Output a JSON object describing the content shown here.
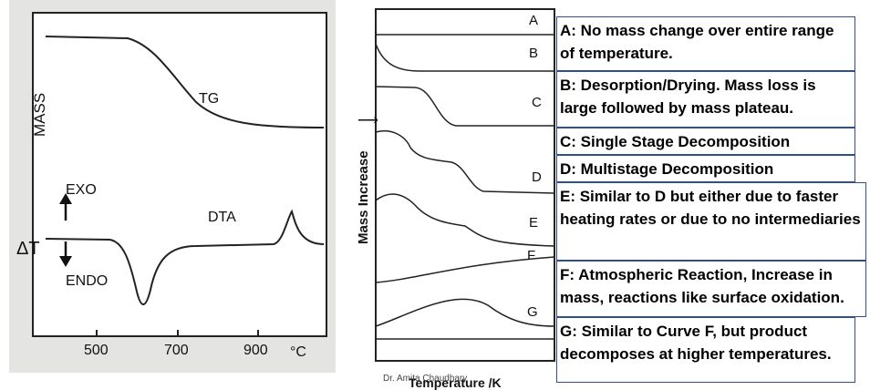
{
  "left_diagram": {
    "y_label_top": "MASS",
    "y_label_bottom": "ΔT",
    "tg_label": "TG",
    "dta_label": "DTA",
    "exo_label": "EXO",
    "endo_label": "ENDO",
    "x_ticks": [
      "500",
      "700",
      "900"
    ],
    "x_unit": "°C"
  },
  "mid_diagram": {
    "y_label": "Mass Increase",
    "x_label": "Temperature /K",
    "curves": [
      "A",
      "B",
      "C",
      "D",
      "E",
      "F",
      "G"
    ]
  },
  "descriptions": [
    {
      "id": "A",
      "text": "A: No mass change over entire range of temperature."
    },
    {
      "id": "B",
      "text": "B: Desorption/Drying. Mass loss is large followed by mass plateau."
    },
    {
      "id": "C",
      "text": "C: Single Stage Decomposition"
    },
    {
      "id": "D",
      "text": "D: Multistage Decomposition"
    },
    {
      "id": "E",
      "text": "E: Similar to D but either due to faster heating rates or due to no intermediaries"
    },
    {
      "id": "F",
      "text": "F: Atmospheric Reaction, Increase in mass, reactions like surface oxidation."
    },
    {
      "id": "G",
      "text": "G: Similar to Curve F, but product decomposes at higher temperatures."
    }
  ],
  "footer": "Dr. Amita Chaudhary"
}
